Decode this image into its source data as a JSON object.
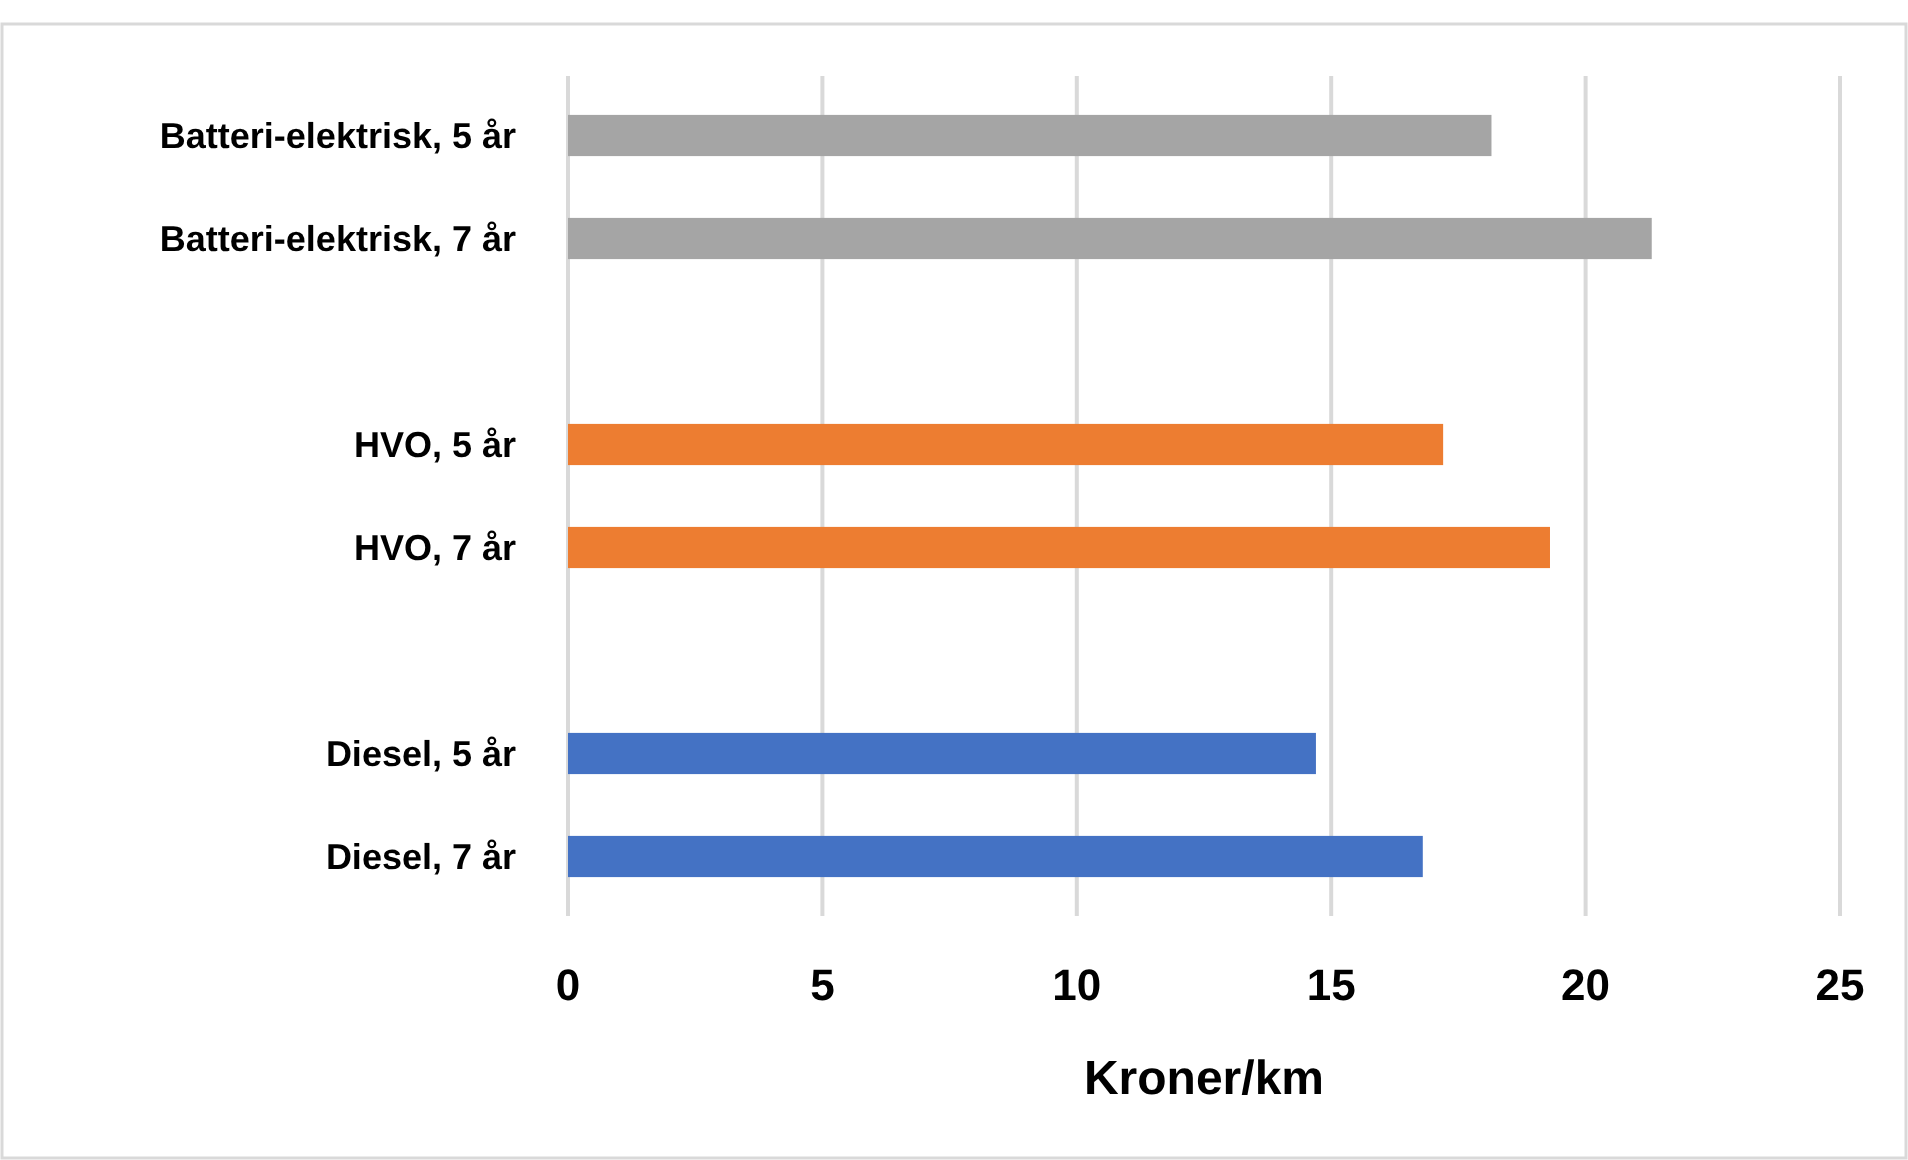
{
  "chart_data": {
    "type": "bar",
    "orientation": "horizontal",
    "xlabel": "Kroner/km",
    "categories": [
      "Batteri-elektrisk, 5 år",
      "Batteri-elektrisk, 7 år",
      null,
      "HVO, 5 år",
      "HVO, 7 år",
      null,
      "Diesel, 5 år",
      "Diesel, 7 år"
    ],
    "values": [
      18.15,
      21.3,
      null,
      17.2,
      19.3,
      null,
      14.7,
      16.8
    ],
    "colors": [
      "#a5a5a5",
      "#a5a5a5",
      null,
      "#ed7d31",
      "#ed7d31",
      null,
      "#4472c4",
      "#4472c4"
    ],
    "xlim": [
      0,
      25
    ],
    "xticks": [
      0,
      5,
      10,
      15,
      20,
      25
    ],
    "grid": "x"
  }
}
